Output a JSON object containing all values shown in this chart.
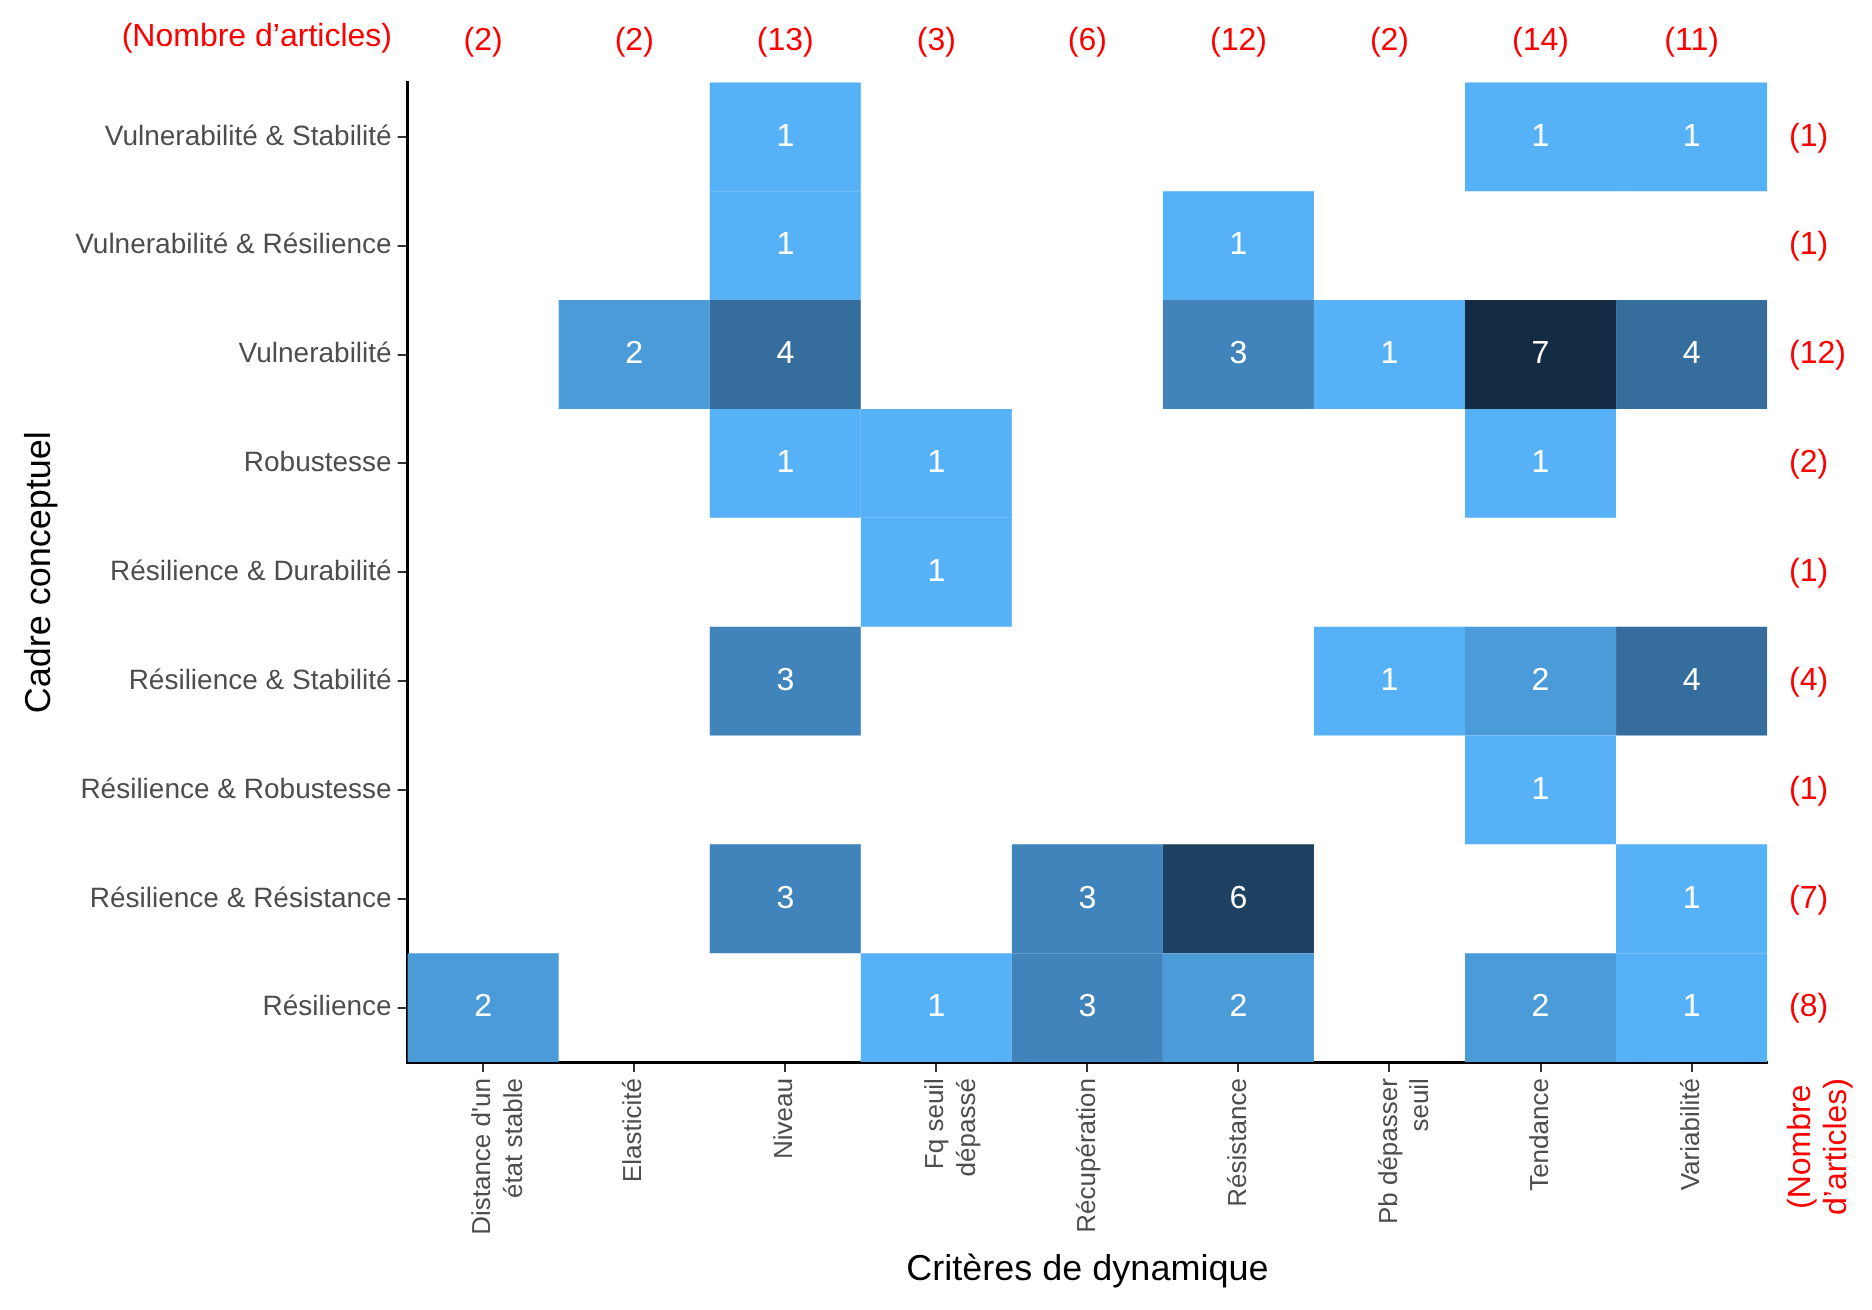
{
  "chart_data": {
    "type": "heatmap",
    "xlabel": "Critères de dynamique",
    "ylabel": "Cadre conceptuel",
    "categories": [
      "Distance d'un état stable",
      "Elasticité",
      "Niveau",
      "Fq seuil dépassé",
      "Récupération",
      "Résistance",
      "Pb dépasser seuil",
      "Tendance",
      "Variabilité"
    ],
    "y_categories": [
      "Vulnerabilité & Stabilité",
      "Vulnerabilité & Résilience",
      "Vulnerabilité",
      "Robustesse",
      "Résilience & Durabilité",
      "Résilience & Stabilité",
      "Résilience & Robustesse",
      "Résilience & Résistance",
      "Résilience"
    ],
    "y2_categories": [
      "(1)",
      "(1)",
      "(12)",
      "(2)",
      "(1)",
      "(4)",
      "(1)",
      "(7)",
      "(8)"
    ],
    "cells": [
      [
        null,
        null,
        1,
        null,
        null,
        null,
        null,
        1,
        1
      ],
      [
        null,
        null,
        1,
        null,
        null,
        1,
        null,
        null,
        null
      ],
      [
        null,
        2,
        4,
        null,
        null,
        3,
        1,
        7,
        4
      ],
      [
        null,
        null,
        1,
        1,
        null,
        null,
        null,
        1,
        null
      ],
      [
        null,
        null,
        null,
        1,
        null,
        null,
        null,
        null,
        null
      ],
      [
        null,
        null,
        3,
        null,
        null,
        null,
        1,
        2,
        4
      ],
      [
        null,
        null,
        null,
        null,
        null,
        null,
        null,
        1,
        null
      ],
      [
        null,
        null,
        3,
        null,
        3,
        6,
        null,
        null,
        1
      ],
      [
        2,
        null,
        null,
        1,
        3,
        2,
        null,
        2,
        1
      ]
    ],
    "colors": [
      "#56b1f7",
      "#132b43"
    ],
    "data_labels": true,
    "grid": false,
    "legend": false,
    "annotations": [
      "(Nombre d’articles)",
      "(2)",
      "(2)",
      "(13)",
      "(3)",
      "(6)",
      "(12)",
      "(2)",
      "(14)",
      "(11)",
      "(Nombre d’articles)"
    ]
  }
}
